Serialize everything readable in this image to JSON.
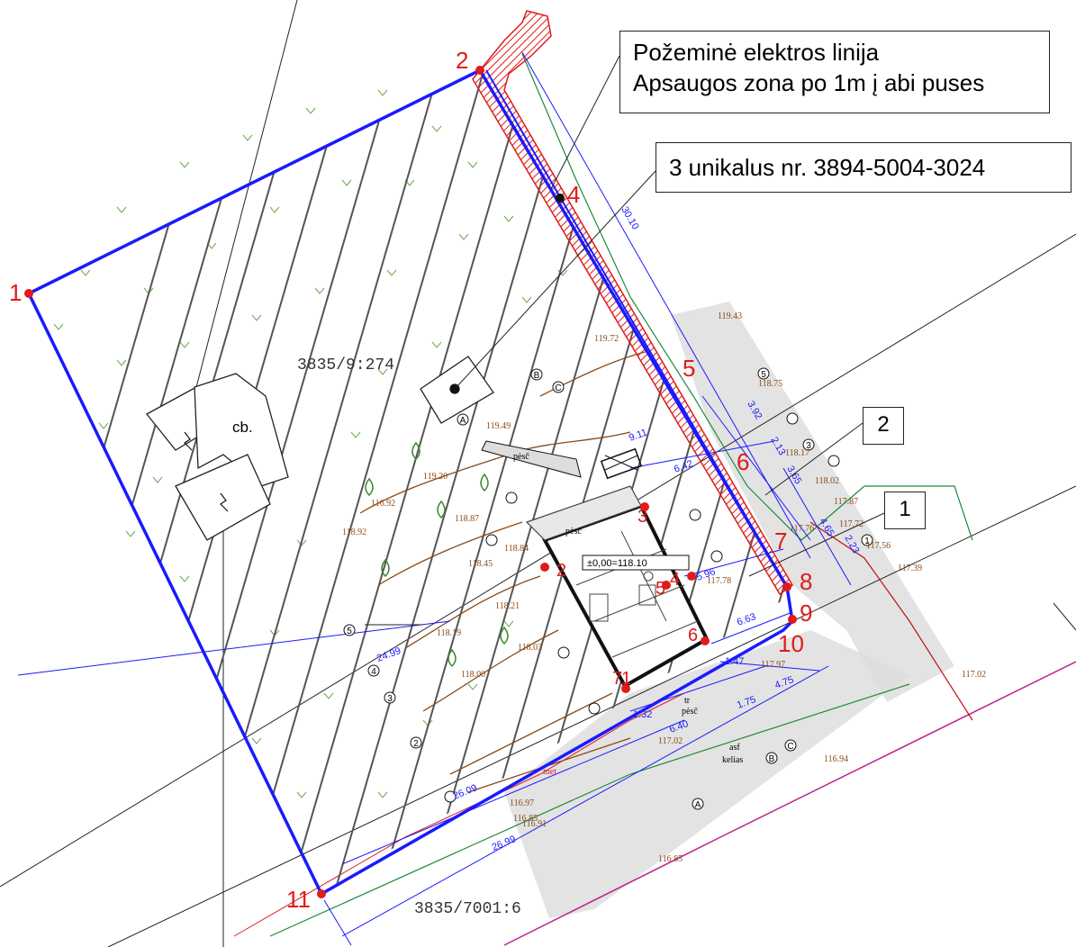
{
  "callouts": {
    "electric_line": {
      "line1": "Požeminė elektros linija",
      "line2": "Apsaugos zona po 1m į abi puses"
    },
    "unique_number": "3 unikalus nr.  3894-5004-3024",
    "box_2": "2",
    "box_1": "1"
  },
  "parcels": {
    "main": "3835/9:274",
    "south": "3835/7001:6"
  },
  "boundary_points": [
    "1",
    "2",
    "4",
    "5",
    "6",
    "7",
    "8",
    "9",
    "10",
    "11"
  ],
  "building_points": [
    "1",
    "2",
    "3",
    "4",
    "5",
    "6",
    "7"
  ],
  "labels": {
    "cb": "cb.",
    "elevation_zero": "±0,00=118.10",
    "asf": "asf",
    "kelias": "kelias",
    "tr_pese": "tr",
    "pese": "pėsč",
    "met": "met"
  },
  "dimensions": [
    "30.10",
    "3.92",
    "2.13",
    "3.65",
    "4.65",
    "2.23",
    "9.11",
    "6.42",
    "5.96",
    "6.63",
    "24.99",
    "26.09",
    "26.99",
    "1.47",
    "1.32",
    "6.40",
    "1.75",
    "4.75"
  ],
  "elevations": [
    "119.43",
    "118.75",
    "119.72",
    "118.17",
    "118.02",
    "117.87",
    "117.72",
    "117.56",
    "117.39",
    "119.49",
    "119.20",
    "118.87",
    "118.92",
    "118.84",
    "118.45",
    "118.21",
    "118.19",
    "118.03",
    "118.00",
    "117.78",
    "117.76",
    "117.97",
    "117.02",
    "116.85",
    "116.94",
    "116.97",
    "116.92",
    "116.91",
    "117.02",
    "116.85"
  ],
  "axis_markers": [
    "A",
    "B",
    "C",
    "1",
    "2",
    "3",
    "4",
    "5"
  ],
  "colors": {
    "boundary": "#1a1aff",
    "protection_zone": "#e01b1b",
    "hatch": "#555555",
    "elevation": "#8a4a16",
    "grass": "#6aa84f",
    "road_shade": "#d9d9d9",
    "gas_line": "#c0208f"
  }
}
